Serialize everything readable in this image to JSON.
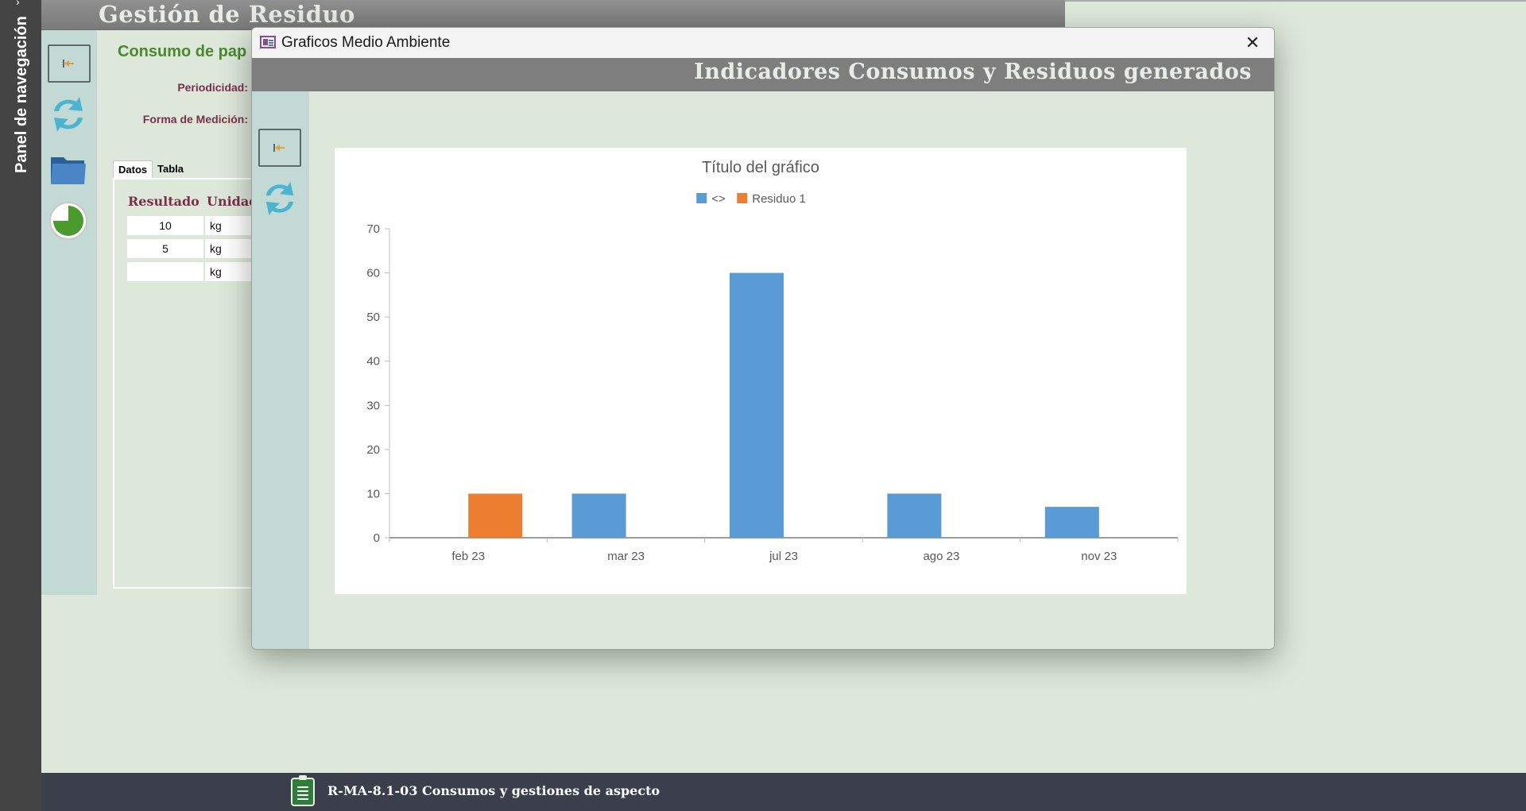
{
  "nav_pane": {
    "label": "Panel de navegación"
  },
  "background_form": {
    "title": "Gestión de Residuo",
    "subtitle": "Consumo de pap",
    "fields": {
      "periodicidad_label": "Periodicidad:",
      "medicion_label": "Forma de Medición:"
    },
    "tabs": [
      {
        "label": "Datos",
        "active": true
      },
      {
        "label": "Tabla",
        "active": false
      }
    ],
    "table": {
      "headers": [
        "Resultado",
        "Unidad"
      ],
      "rows": [
        {
          "resultado": "10",
          "unidad": "kg"
        },
        {
          "resultado": "5",
          "unidad": "kg"
        },
        {
          "resultado": "",
          "unidad": "kg"
        }
      ]
    }
  },
  "popup": {
    "window_title": "Graficos Medio Ambiente",
    "close_glyph": "✕",
    "banner_title": "Indicadores Consumos y Residuos generados"
  },
  "status_bar": {
    "text": "R-MA-8.1-03 Consumos y gestiones de aspecto"
  },
  "colors": {
    "series_blue": "#5b9bd5",
    "series_orange": "#ed7d31",
    "accent_green": "#4a8a2c",
    "label_maroon": "#7b2f4a"
  },
  "chart_data": {
    "type": "bar",
    "title": "Título del gráfico",
    "categories": [
      "feb 23",
      "mar 23",
      "jul 23",
      "ago 23",
      "nov 23"
    ],
    "series": [
      {
        "name": "<>",
        "color": "#5b9bd5",
        "values": [
          null,
          10,
          60,
          10,
          7
        ]
      },
      {
        "name": "Residuo 1",
        "color": "#ed7d31",
        "values": [
          10,
          null,
          null,
          null,
          null
        ]
      }
    ],
    "ylim": [
      0,
      70
    ],
    "yticks": [
      0,
      10,
      20,
      30,
      40,
      50,
      60,
      70
    ],
    "legend": "top",
    "grid": false
  }
}
